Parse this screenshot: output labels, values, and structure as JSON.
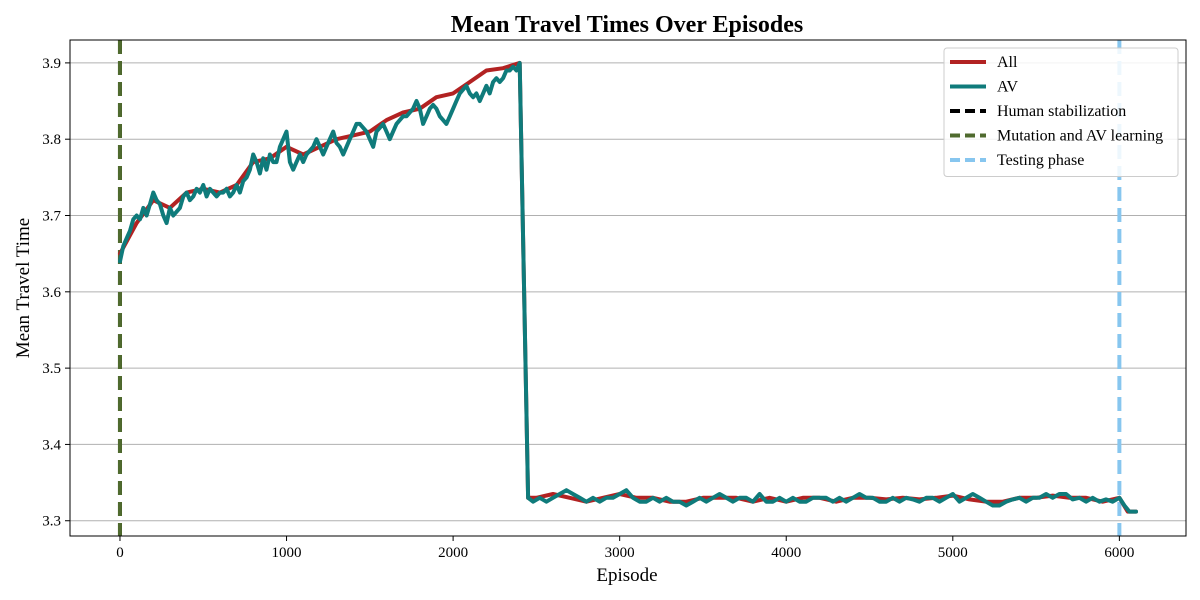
{
  "chart_data": {
    "type": "line",
    "title": "Mean Travel Times Over Episodes",
    "xlabel": "Episode",
    "ylabel": "Mean Travel Time",
    "xlim": [
      -300,
      6400
    ],
    "ylim": [
      3.28,
      3.93
    ],
    "x_ticks": [
      0,
      1000,
      2000,
      3000,
      4000,
      5000,
      6000
    ],
    "y_ticks": [
      3.3,
      3.4,
      3.5,
      3.6,
      3.7,
      3.8,
      3.9
    ],
    "grid": "horizontal",
    "legend_position": "top-right",
    "series": [
      {
        "name": "All",
        "color": "#b22222",
        "x": [
          0,
          100,
          200,
          300,
          400,
          500,
          600,
          700,
          800,
          900,
          1000,
          1100,
          1200,
          1300,
          1400,
          1500,
          1600,
          1700,
          1800,
          1900,
          2000,
          2100,
          2200,
          2300,
          2400,
          2450,
          2500,
          2600,
          2700,
          2800,
          2900,
          3000,
          3100,
          3200,
          3300,
          3400,
          3500,
          3600,
          3700,
          3800,
          3900,
          4000,
          4100,
          4200,
          4300,
          4400,
          4500,
          4600,
          4700,
          4800,
          4900,
          5000,
          5100,
          5200,
          5300,
          5400,
          5500,
          5600,
          5700,
          5800,
          5900,
          6000,
          6050,
          6100
        ],
        "y": [
          3.65,
          3.69,
          3.72,
          3.71,
          3.73,
          3.735,
          3.73,
          3.74,
          3.77,
          3.775,
          3.79,
          3.78,
          3.79,
          3.8,
          3.805,
          3.81,
          3.825,
          3.835,
          3.84,
          3.855,
          3.86,
          3.875,
          3.89,
          3.893,
          3.9,
          3.33,
          3.33,
          3.335,
          3.33,
          3.325,
          3.33,
          3.335,
          3.33,
          3.33,
          3.325,
          3.325,
          3.33,
          3.33,
          3.33,
          3.325,
          3.33,
          3.325,
          3.33,
          3.33,
          3.325,
          3.33,
          3.33,
          3.328,
          3.33,
          3.328,
          3.33,
          3.333,
          3.328,
          3.325,
          3.325,
          3.33,
          3.33,
          3.333,
          3.33,
          3.33,
          3.325,
          3.33,
          3.312,
          3.312
        ]
      },
      {
        "name": "AV",
        "color": "#0f7b7b",
        "x": [
          0,
          20,
          40,
          60,
          80,
          100,
          120,
          140,
          160,
          180,
          200,
          220,
          240,
          260,
          280,
          300,
          320,
          340,
          360,
          380,
          400,
          420,
          440,
          460,
          480,
          500,
          520,
          540,
          560,
          580,
          600,
          620,
          640,
          660,
          680,
          700,
          720,
          740,
          760,
          780,
          800,
          820,
          840,
          860,
          880,
          900,
          920,
          940,
          960,
          980,
          1000,
          1020,
          1040,
          1060,
          1080,
          1100,
          1120,
          1140,
          1160,
          1180,
          1200,
          1220,
          1240,
          1260,
          1280,
          1300,
          1320,
          1340,
          1360,
          1380,
          1400,
          1420,
          1440,
          1460,
          1480,
          1500,
          1520,
          1540,
          1560,
          1580,
          1600,
          1620,
          1640,
          1660,
          1680,
          1700,
          1720,
          1740,
          1760,
          1780,
          1800,
          1820,
          1840,
          1860,
          1880,
          1900,
          1920,
          1940,
          1960,
          1980,
          2000,
          2020,
          2040,
          2060,
          2080,
          2100,
          2120,
          2140,
          2160,
          2180,
          2200,
          2220,
          2240,
          2260,
          2280,
          2300,
          2320,
          2340,
          2360,
          2380,
          2400,
          2450,
          2480,
          2520,
          2560,
          2600,
          2640,
          2680,
          2720,
          2760,
          2800,
          2840,
          2880,
          2920,
          2960,
          3000,
          3040,
          3080,
          3120,
          3160,
          3200,
          3240,
          3280,
          3320,
          3360,
          3400,
          3440,
          3480,
          3520,
          3560,
          3600,
          3640,
          3680,
          3720,
          3760,
          3800,
          3840,
          3880,
          3920,
          3960,
          4000,
          4040,
          4080,
          4120,
          4160,
          4200,
          4240,
          4280,
          4320,
          4360,
          4400,
          4440,
          4480,
          4520,
          4560,
          4600,
          4640,
          4680,
          4720,
          4760,
          4800,
          4840,
          4880,
          4920,
          4960,
          5000,
          5040,
          5080,
          5120,
          5160,
          5200,
          5240,
          5280,
          5320,
          5360,
          5400,
          5440,
          5480,
          5520,
          5560,
          5600,
          5640,
          5680,
          5720,
          5760,
          5800,
          5840,
          5880,
          5920,
          5960,
          6000,
          6030,
          6060,
          6100
        ],
        "y": [
          3.64,
          3.66,
          3.67,
          3.68,
          3.695,
          3.7,
          3.695,
          3.71,
          3.7,
          3.715,
          3.73,
          3.72,
          3.715,
          3.7,
          3.69,
          3.71,
          3.7,
          3.705,
          3.71,
          3.725,
          3.73,
          3.72,
          3.725,
          3.735,
          3.73,
          3.74,
          3.725,
          3.735,
          3.73,
          3.725,
          3.73,
          3.73,
          3.735,
          3.725,
          3.73,
          3.74,
          3.73,
          3.745,
          3.75,
          3.76,
          3.78,
          3.77,
          3.755,
          3.775,
          3.76,
          3.78,
          3.77,
          3.77,
          3.79,
          3.8,
          3.81,
          3.77,
          3.76,
          3.77,
          3.78,
          3.77,
          3.78,
          3.785,
          3.79,
          3.8,
          3.79,
          3.78,
          3.79,
          3.8,
          3.81,
          3.795,
          3.79,
          3.78,
          3.79,
          3.8,
          3.81,
          3.82,
          3.82,
          3.815,
          3.81,
          3.8,
          3.79,
          3.81,
          3.815,
          3.82,
          3.81,
          3.8,
          3.81,
          3.82,
          3.825,
          3.83,
          3.83,
          3.835,
          3.84,
          3.85,
          3.84,
          3.82,
          3.83,
          3.84,
          3.845,
          3.84,
          3.83,
          3.825,
          3.82,
          3.83,
          3.84,
          3.85,
          3.86,
          3.865,
          3.87,
          3.86,
          3.855,
          3.86,
          3.85,
          3.86,
          3.87,
          3.86,
          3.875,
          3.88,
          3.875,
          3.88,
          3.89,
          3.89,
          3.895,
          3.89,
          3.9,
          3.33,
          3.325,
          3.33,
          3.325,
          3.33,
          3.335,
          3.34,
          3.335,
          3.33,
          3.325,
          3.33,
          3.325,
          3.33,
          3.33,
          3.335,
          3.34,
          3.33,
          3.325,
          3.325,
          3.33,
          3.325,
          3.33,
          3.325,
          3.325,
          3.32,
          3.325,
          3.33,
          3.325,
          3.33,
          3.335,
          3.33,
          3.325,
          3.33,
          3.33,
          3.325,
          3.335,
          3.325,
          3.325,
          3.33,
          3.325,
          3.33,
          3.325,
          3.325,
          3.33,
          3.33,
          3.33,
          3.325,
          3.33,
          3.325,
          3.33,
          3.335,
          3.33,
          3.33,
          3.325,
          3.325,
          3.33,
          3.325,
          3.33,
          3.328,
          3.325,
          3.33,
          3.33,
          3.325,
          3.33,
          3.335,
          3.325,
          3.33,
          3.335,
          3.33,
          3.325,
          3.32,
          3.32,
          3.325,
          3.328,
          3.33,
          3.325,
          3.33,
          3.33,
          3.335,
          3.33,
          3.335,
          3.335,
          3.328,
          3.33,
          3.325,
          3.33,
          3.325,
          3.328,
          3.325,
          3.33,
          3.32,
          3.312,
          3.312
        ]
      }
    ],
    "vlines": [
      {
        "name": "Human stabilization",
        "x": 0,
        "color": "#000000",
        "style": "dashed"
      },
      {
        "name": "Mutation and AV learning",
        "x": 0,
        "color": "#4f6a2e",
        "style": "dashed"
      },
      {
        "name": "Testing phase",
        "x": 6000,
        "color": "#87c6ef",
        "style": "dashed"
      }
    ]
  }
}
